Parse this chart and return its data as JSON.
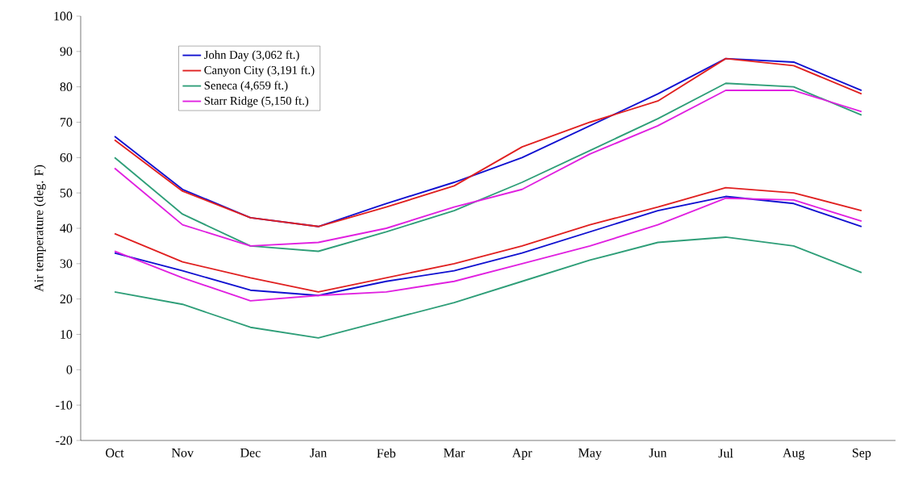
{
  "chart_data": {
    "type": "line",
    "ylabel": "Air temperature (deg. F)",
    "categories": [
      "Oct",
      "Nov",
      "Dec",
      "Jan",
      "Feb",
      "Mar",
      "Apr",
      "May",
      "Jun",
      "Jul",
      "Aug",
      "Sep"
    ],
    "ylim": [
      -20,
      100
    ],
    "yticks": [
      -20,
      -10,
      0,
      10,
      20,
      30,
      40,
      50,
      60,
      70,
      80,
      90,
      100
    ],
    "legend": "top left",
    "grid": false,
    "marker": "none",
    "line_style": "solid",
    "series": [
      {
        "name": "John Day (3,062 ft.)",
        "color": "#1010d0",
        "values": [
          66,
          51,
          43,
          40.5,
          47,
          53,
          60,
          69,
          78,
          88,
          87,
          79
        ]
      },
      {
        "name": "Canyon City (3,191 ft.)",
        "color": "#e02020",
        "values": [
          65,
          50.5,
          43,
          40.5,
          46,
          52,
          63,
          70,
          76,
          88,
          86,
          78
        ]
      },
      {
        "name": "Seneca (4,659 ft.)",
        "color": "#2e9e78",
        "values": [
          60,
          44,
          35,
          33.5,
          39,
          45,
          53,
          62,
          71,
          81,
          80,
          72
        ]
      },
      {
        "name": "Starr Ridge (5,150 ft.)",
        "color": "#e020e0",
        "values": [
          57,
          41,
          35,
          36,
          40,
          46,
          51,
          61,
          69,
          79,
          79,
          73
        ]
      },
      {
        "color": "#1010d0",
        "values": [
          33,
          28,
          22.5,
          21,
          25,
          28,
          33,
          39,
          45,
          49,
          47,
          40.5
        ]
      },
      {
        "color": "#e02020",
        "values": [
          38.5,
          30.5,
          26,
          22,
          26,
          30,
          35,
          41,
          46,
          51.5,
          50,
          45
        ]
      },
      {
        "color": "#2e9e78",
        "values": [
          22,
          18.5,
          12,
          9,
          14,
          19,
          25,
          31,
          36,
          37.5,
          35,
          27.5
        ]
      },
      {
        "color": "#e020e0",
        "values": [
          33.5,
          26,
          19.5,
          21,
          22,
          25,
          30,
          35,
          41,
          48.5,
          48,
          42
        ]
      }
    ]
  }
}
